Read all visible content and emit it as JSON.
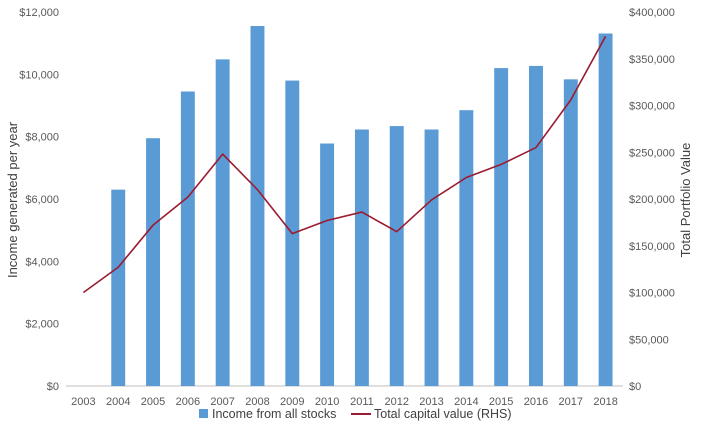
{
  "chart_data": {
    "type": "bar",
    "categories": [
      "2003",
      "2004",
      "2005",
      "2006",
      "2007",
      "2008",
      "2009",
      "2010",
      "2011",
      "2012",
      "2013",
      "2014",
      "2015",
      "2016",
      "2017",
      "2018"
    ],
    "series": [
      {
        "name": "Income from all stocks",
        "type": "bar",
        "axis": "left",
        "color": "#5B9BD5",
        "values": [
          null,
          6300,
          7950,
          9450,
          10480,
          11550,
          9800,
          7780,
          8230,
          8340,
          8230,
          8850,
          10200,
          10270,
          9840,
          11310
        ]
      },
      {
        "name": "Total capital value (RHS)",
        "type": "line",
        "axis": "right",
        "color": "#9B1B30",
        "values": [
          100000,
          127000,
          172000,
          202000,
          248000,
          210000,
          163000,
          177000,
          186000,
          165000,
          199000,
          223000,
          237000,
          255000,
          306000,
          374000
        ]
      }
    ],
    "ylabel": "Income generated per year",
    "ylabel_right": "Total Portfolio Value",
    "ylim": [
      0,
      12000
    ],
    "ylim_right": [
      0,
      400000
    ],
    "yticks": [
      "$0",
      "$2,000",
      "$4,000",
      "$6,000",
      "$8,000",
      "$10,000",
      "$12,000"
    ],
    "yticks_right": [
      "$0",
      "$50,000",
      "$100,000",
      "$150,000",
      "$200,000",
      "$250,000",
      "$300,000",
      "$350,000",
      "$400,000"
    ],
    "grid": false,
    "legend_position": "bottom"
  }
}
